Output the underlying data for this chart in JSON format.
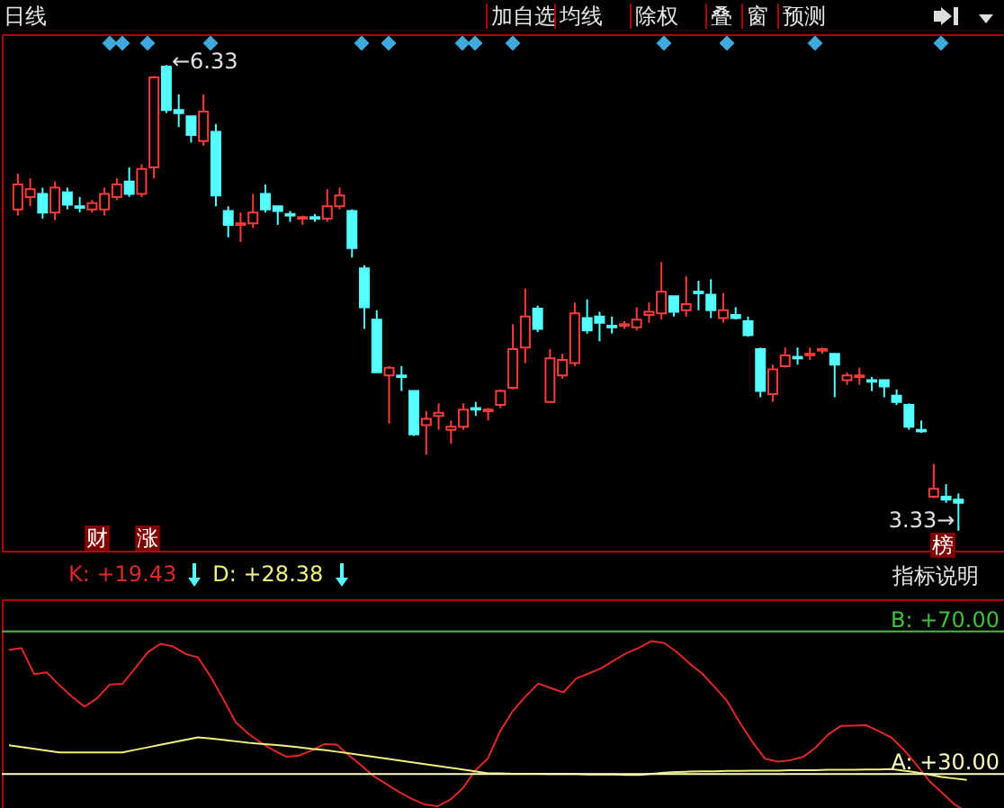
{
  "chart_data": [
    {
      "type": "candlestick",
      "tick_labels": false,
      "categories": [
        null,
        null,
        null,
        null,
        null,
        null,
        null,
        null,
        null,
        null,
        null,
        null,
        null,
        null,
        null,
        null,
        null,
        null,
        null,
        null,
        null,
        null,
        null,
        null,
        null,
        null,
        null,
        null,
        null,
        null,
        null,
        null,
        null,
        null,
        null,
        null,
        null,
        null,
        null,
        null,
        null,
        null,
        null,
        null,
        null,
        null,
        null,
        null,
        null,
        null,
        null,
        null,
        null,
        null,
        null,
        null,
        null,
        null,
        null,
        null,
        null,
        null,
        null,
        null,
        null,
        null,
        null,
        null,
        null,
        null,
        null,
        null,
        null,
        null,
        null,
        null,
        null
      ],
      "ohlc": [
        [
          5.4,
          5.63,
          5.36,
          5.56
        ],
        [
          5.48,
          5.6,
          5.42,
          5.53
        ],
        [
          5.5,
          5.54,
          5.34,
          5.38
        ],
        [
          5.38,
          5.58,
          5.33,
          5.54
        ],
        [
          5.51,
          5.54,
          5.4,
          5.43
        ],
        [
          5.42,
          5.48,
          5.38,
          5.41
        ],
        [
          5.4,
          5.46,
          5.38,
          5.44
        ],
        [
          5.4,
          5.54,
          5.36,
          5.5
        ],
        [
          5.48,
          5.6,
          5.46,
          5.56
        ],
        [
          5.58,
          5.67,
          5.48,
          5.5
        ],
        [
          5.5,
          5.69,
          5.48,
          5.66
        ],
        [
          5.67,
          6.26,
          5.6,
          6.25
        ],
        [
          6.32,
          6.33,
          6.02,
          6.04
        ],
        [
          6.04,
          6.14,
          5.93,
          6.02
        ],
        [
          6.0,
          6.0,
          5.83,
          5.88
        ],
        [
          5.84,
          6.14,
          5.81,
          6.03
        ],
        [
          5.9,
          5.95,
          5.42,
          5.49
        ],
        [
          5.39,
          5.42,
          5.22,
          5.3
        ],
        [
          5.3,
          5.38,
          5.19,
          5.31
        ],
        [
          5.31,
          5.5,
          5.28,
          5.38
        ],
        [
          5.5,
          5.56,
          5.38,
          5.4
        ],
        [
          5.42,
          5.42,
          5.3,
          5.39
        ],
        [
          5.37,
          5.39,
          5.32,
          5.36
        ],
        [
          5.34,
          5.36,
          5.3,
          5.35
        ],
        [
          5.35,
          5.37,
          5.32,
          5.34
        ],
        [
          5.34,
          5.53,
          5.32,
          5.42
        ],
        [
          5.42,
          5.54,
          5.4,
          5.49
        ],
        [
          5.39,
          5.4,
          5.09,
          5.15
        ],
        [
          5.02,
          5.04,
          4.63,
          4.77
        ],
        [
          4.69,
          4.75,
          4.35,
          4.35
        ],
        [
          4.33,
          4.39,
          4.02,
          4.38
        ],
        [
          4.33,
          4.39,
          4.23,
          4.32
        ],
        [
          4.23,
          4.23,
          3.94,
          3.95
        ],
        [
          4.01,
          4.1,
          3.82,
          4.05
        ],
        [
          4.07,
          4.15,
          3.98,
          4.09
        ],
        [
          3.98,
          4.04,
          3.89,
          4.0
        ],
        [
          4.0,
          4.15,
          3.98,
          4.11
        ],
        [
          4.12,
          4.16,
          4.07,
          4.11
        ],
        [
          4.1,
          4.12,
          4.04,
          4.11
        ],
        [
          4.14,
          4.24,
          4.12,
          4.23
        ],
        [
          4.25,
          4.66,
          4.24,
          4.5
        ],
        [
          4.51,
          4.89,
          4.41,
          4.71
        ],
        [
          4.76,
          4.78,
          4.61,
          4.63
        ],
        [
          4.16,
          4.5,
          4.16,
          4.44
        ],
        [
          4.33,
          4.47,
          4.31,
          4.43
        ],
        [
          4.41,
          4.8,
          4.39,
          4.73
        ],
        [
          4.7,
          4.82,
          4.6,
          4.62
        ],
        [
          4.71,
          4.74,
          4.55,
          4.67
        ],
        [
          4.65,
          4.71,
          4.6,
          4.64
        ],
        [
          4.65,
          4.68,
          4.63,
          4.66
        ],
        [
          4.64,
          4.77,
          4.62,
          4.69
        ],
        [
          4.72,
          4.8,
          4.67,
          4.74
        ],
        [
          4.73,
          5.06,
          4.69,
          4.87
        ],
        [
          4.84,
          4.84,
          4.71,
          4.74
        ],
        [
          4.75,
          4.97,
          4.71,
          4.79
        ],
        [
          4.87,
          4.94,
          4.75,
          4.86
        ],
        [
          4.85,
          4.95,
          4.7,
          4.75
        ],
        [
          4.7,
          4.86,
          4.67,
          4.75
        ],
        [
          4.72,
          4.77,
          4.69,
          4.7
        ],
        [
          4.68,
          4.71,
          4.58,
          4.59
        ],
        [
          4.5,
          4.51,
          4.19,
          4.23
        ],
        [
          4.21,
          4.4,
          4.16,
          4.37
        ],
        [
          4.39,
          4.51,
          4.38,
          4.46
        ],
        [
          4.45,
          4.51,
          4.4,
          4.44
        ],
        [
          4.46,
          4.51,
          4.43,
          4.47
        ],
        [
          4.49,
          4.51,
          4.47,
          4.5
        ],
        [
          4.47,
          4.47,
          4.19,
          4.4
        ],
        [
          4.3,
          4.35,
          4.27,
          4.33
        ],
        [
          4.32,
          4.38,
          4.27,
          4.33
        ],
        [
          4.3,
          4.32,
          4.23,
          4.29
        ],
        [
          4.3,
          4.3,
          4.19,
          4.26
        ],
        [
          4.2,
          4.24,
          4.14,
          4.16
        ],
        [
          4.14,
          4.15,
          3.98,
          4.0
        ],
        [
          3.98,
          4.04,
          3.96,
          3.97
        ],
        [
          3.55,
          3.76,
          3.54,
          3.6
        ],
        [
          3.55,
          3.63,
          3.51,
          3.53
        ],
        [
          3.53,
          3.57,
          3.33,
          3.51
        ]
      ],
      "annotations": [
        "日线",
        "加自选",
        "均线",
        "除权",
        "叠",
        "窗",
        "预测",
        "指标说明",
        "财",
        "涨",
        "榜",
        "←6.33",
        "3.33→"
      ]
    },
    {
      "type": "line",
      "tick_labels": "y",
      "legend": "top left",
      "ylim": [
        19,
        79
      ],
      "yticks": [
        {
          "value": 30,
          "label": "A: +30.00"
        },
        {
          "value": 70,
          "label": "B: +70.00"
        }
      ],
      "categories": [
        null,
        null,
        null,
        null,
        null,
        null,
        null,
        null,
        null,
        null,
        null,
        null,
        null,
        null,
        null,
        null,
        null,
        null,
        null,
        null,
        null,
        null,
        null,
        null,
        null,
        null,
        null,
        null,
        null,
        null,
        null,
        null,
        null,
        null,
        null,
        null,
        null,
        null,
        null,
        null,
        null,
        null,
        null,
        null,
        null,
        null,
        null,
        null,
        null,
        null,
        null,
        null,
        null,
        null,
        null,
        null,
        null,
        null,
        null,
        null,
        null,
        null,
        null,
        null,
        null,
        null,
        null,
        null,
        null,
        null,
        null,
        null,
        null,
        null,
        null,
        null,
        null
      ],
      "series": [
        {
          "name": "K: +19.43",
          "color": "#e02828",
          "values": [
            64.8,
            65.3,
            58.0,
            58.5,
            54.9,
            51.7,
            48.9,
            51.3,
            55.1,
            55.3,
            59.6,
            64.1,
            66.5,
            65.8,
            63.7,
            62.7,
            57.3,
            51.1,
            44.5,
            41.3,
            38.8,
            36.7,
            34.9,
            35.2,
            36.6,
            38.4,
            38.3,
            35.2,
            32.3,
            29.3,
            27.1,
            24.9,
            23.0,
            21.5,
            21.0,
            22.8,
            26.0,
            31.0,
            34.4,
            42.2,
            47.8,
            51.8,
            55.4,
            54.1,
            52.9,
            56.8,
            58.2,
            59.7,
            61.8,
            63.9,
            65.4,
            67.3,
            66.7,
            64.2,
            61.0,
            58.2,
            54.4,
            50.4,
            44.4,
            39.0,
            34.3,
            33.5,
            33.9,
            34.8,
            37.4,
            41.1,
            43.5,
            43.6,
            43.7,
            42.1,
            40.3,
            36.9,
            32.7,
            28.2,
            24.9,
            21.6,
            19.43
          ]
        },
        {
          "name": "D: +28.38",
          "color": "#f0f080",
          "values": [
            38.1,
            37.6,
            37.1,
            36.6,
            36.1,
            36.1,
            36.1,
            36.1,
            36.1,
            36.1,
            36.8,
            37.5,
            38.2,
            38.9,
            39.6,
            40.3,
            40.0,
            39.6,
            39.2,
            38.8,
            38.5,
            38.2,
            37.9,
            37.5,
            37.1,
            36.8,
            36.3,
            35.8,
            35.3,
            34.8,
            34.3,
            33.8,
            33.3,
            32.8,
            32.3,
            31.8,
            31.3,
            30.8,
            30.2,
            30.2,
            30.1,
            30.1,
            30.1,
            30.0,
            30.0,
            30.0,
            29.9,
            29.9,
            29.9,
            29.8,
            29.8,
            30.1,
            30.4,
            30.6,
            30.7,
            30.8,
            30.8,
            30.9,
            30.9,
            31.0,
            31.0,
            31.0,
            31.1,
            31.1,
            31.1,
            31.2,
            31.2,
            31.2,
            31.3,
            31.3,
            31.4,
            31.0,
            30.5,
            29.9,
            29.2,
            28.8,
            28.38
          ]
        }
      ],
      "ref_lines": [
        {
          "axis": "y",
          "value": 30,
          "color": "#ffffc0"
        },
        {
          "axis": "y",
          "value": 70,
          "color": "#40c040"
        }
      ]
    }
  ]
}
